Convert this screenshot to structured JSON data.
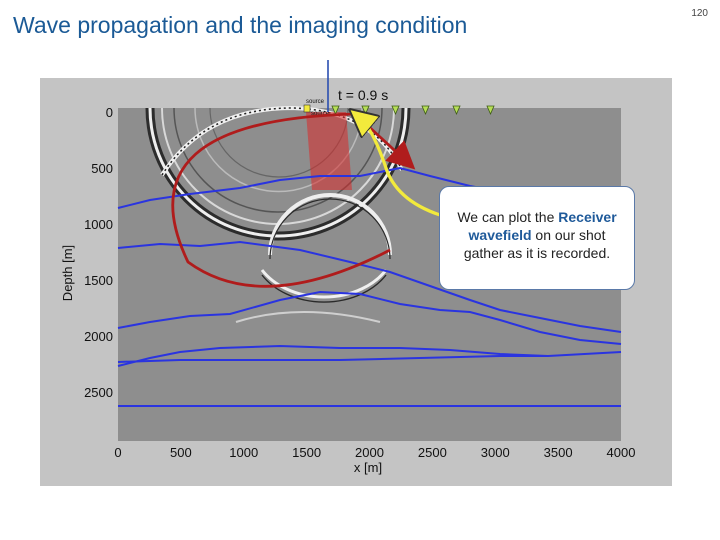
{
  "slide": {
    "title": "Wave propagation and the imaging condition",
    "page_number": "120"
  },
  "figure": {
    "time_label": "t = 0.9 s",
    "source_label_top": "source",
    "source_label_bottom": "source",
    "y_axis_label": "Depth [m]",
    "x_axis_label": "x [m]",
    "x_ticks": [
      "0",
      "500",
      "1000",
      "1500",
      "2000",
      "2500",
      "3000",
      "3500",
      "4000"
    ],
    "y_ticks": [
      "0",
      "500",
      "1000",
      "1500",
      "2000",
      "2500"
    ],
    "receiver_count": 6,
    "colors": {
      "background": "#8e8e8e",
      "layer_lines": "#2a34e0",
      "arrow_red": "#b01c1c",
      "arrow_yellow": "#f2ea3c",
      "receiver": "#b6dd58"
    }
  },
  "callout": {
    "part1": "We can plot the ",
    "highlight1": "Receiver wavefield",
    "part2": " on our shot gather as it is recorded."
  }
}
